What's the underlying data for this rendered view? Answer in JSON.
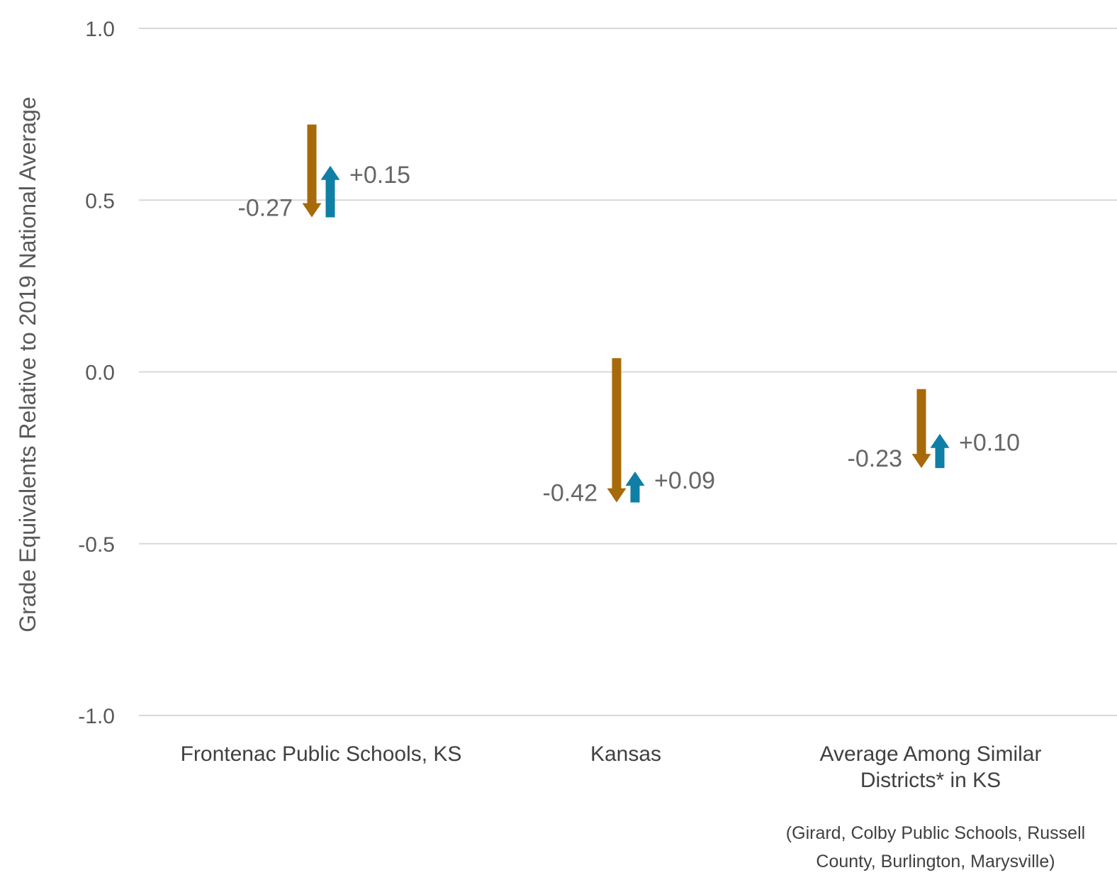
{
  "chart_data": {
    "type": "arrow-change",
    "title": "",
    "xlabel": "",
    "ylabel": "Grade Equivalents Relative to 2019 National Average",
    "ylim": [
      -1.0,
      1.0
    ],
    "yticks": [
      1.0,
      0.5,
      0.0,
      -0.5,
      -1.0
    ],
    "ytick_labels": [
      "1.0",
      "0.5",
      "0.0",
      "-0.5",
      "-1.0"
    ],
    "grid": true,
    "legend": "none",
    "colors": {
      "decline": "#A66A0A",
      "recovery": "#0F7FA6",
      "grid": "#d9d9d9",
      "text": "#595959"
    },
    "categories": [
      {
        "label_lines": [
          "Frontenac Public Schools, KS"
        ],
        "note_lines": [],
        "start": 0.72,
        "decline": -0.27,
        "recovery": 0.15,
        "decline_label": "-0.27",
        "recovery_label": "+0.15"
      },
      {
        "label_lines": [
          "Kansas"
        ],
        "note_lines": [],
        "start": 0.04,
        "decline": -0.42,
        "recovery": 0.09,
        "decline_label": "-0.42",
        "recovery_label": "+0.09"
      },
      {
        "label_lines": [
          "Average Among Similar",
          "Districts* in KS"
        ],
        "note_lines": [
          "(Girard, Colby Public Schools, Russell",
          "County, Burlington, Marysville)"
        ],
        "start": -0.05,
        "decline": -0.23,
        "recovery": 0.1,
        "decline_label": "-0.23",
        "recovery_label": "+0.10"
      }
    ]
  }
}
